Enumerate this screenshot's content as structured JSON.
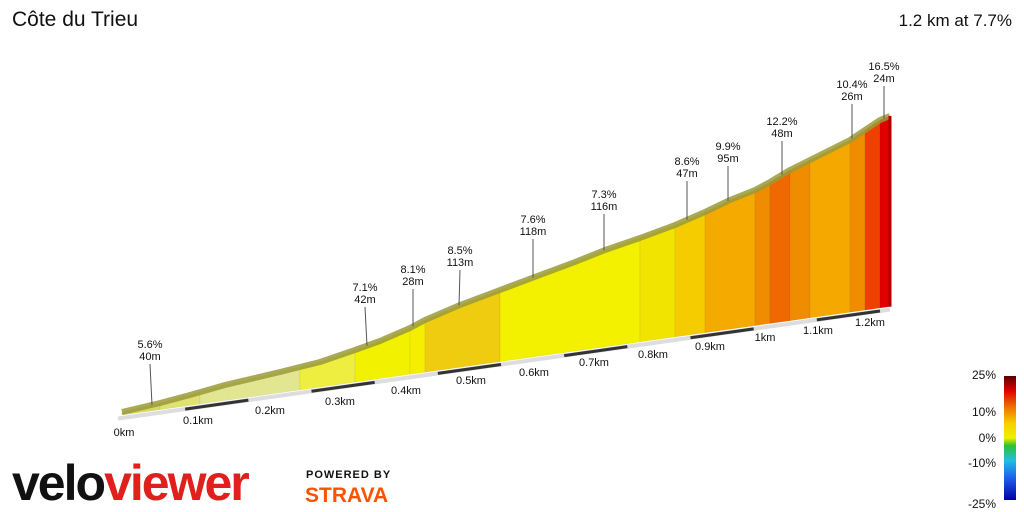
{
  "header": {
    "title": "Côte du Trieu",
    "summary": "1.2 km at 7.7%"
  },
  "annotations": [
    {
      "grade": "5.6%",
      "length": "40m"
    },
    {
      "grade": "7.1%",
      "length": "42m"
    },
    {
      "grade": "8.1%",
      "length": "28m"
    },
    {
      "grade": "8.5%",
      "length": "113m"
    },
    {
      "grade": "7.6%",
      "length": "118m"
    },
    {
      "grade": "7.3%",
      "length": "116m"
    },
    {
      "grade": "8.6%",
      "length": "47m"
    },
    {
      "grade": "9.9%",
      "length": "95m"
    },
    {
      "grade": "12.2%",
      "length": "48m"
    },
    {
      "grade": "10.4%",
      "length": "26m"
    },
    {
      "grade": "16.5%",
      "length": "24m"
    }
  ],
  "distance_labels": [
    "0km",
    "0.1km",
    "0.2km",
    "0.3km",
    "0.4km",
    "0.5km",
    "0.6km",
    "0.7km",
    "0.8km",
    "0.9km",
    "1km",
    "1.1km",
    "1.2km"
  ],
  "color_scale": {
    "labels": [
      "25%",
      "10%",
      "0%",
      "-10%",
      "-25%"
    ]
  },
  "branding": {
    "logo_part1": "velo",
    "logo_part2": "viewer",
    "powered_by": "POWERED BY",
    "partner": "STRAVA"
  }
}
